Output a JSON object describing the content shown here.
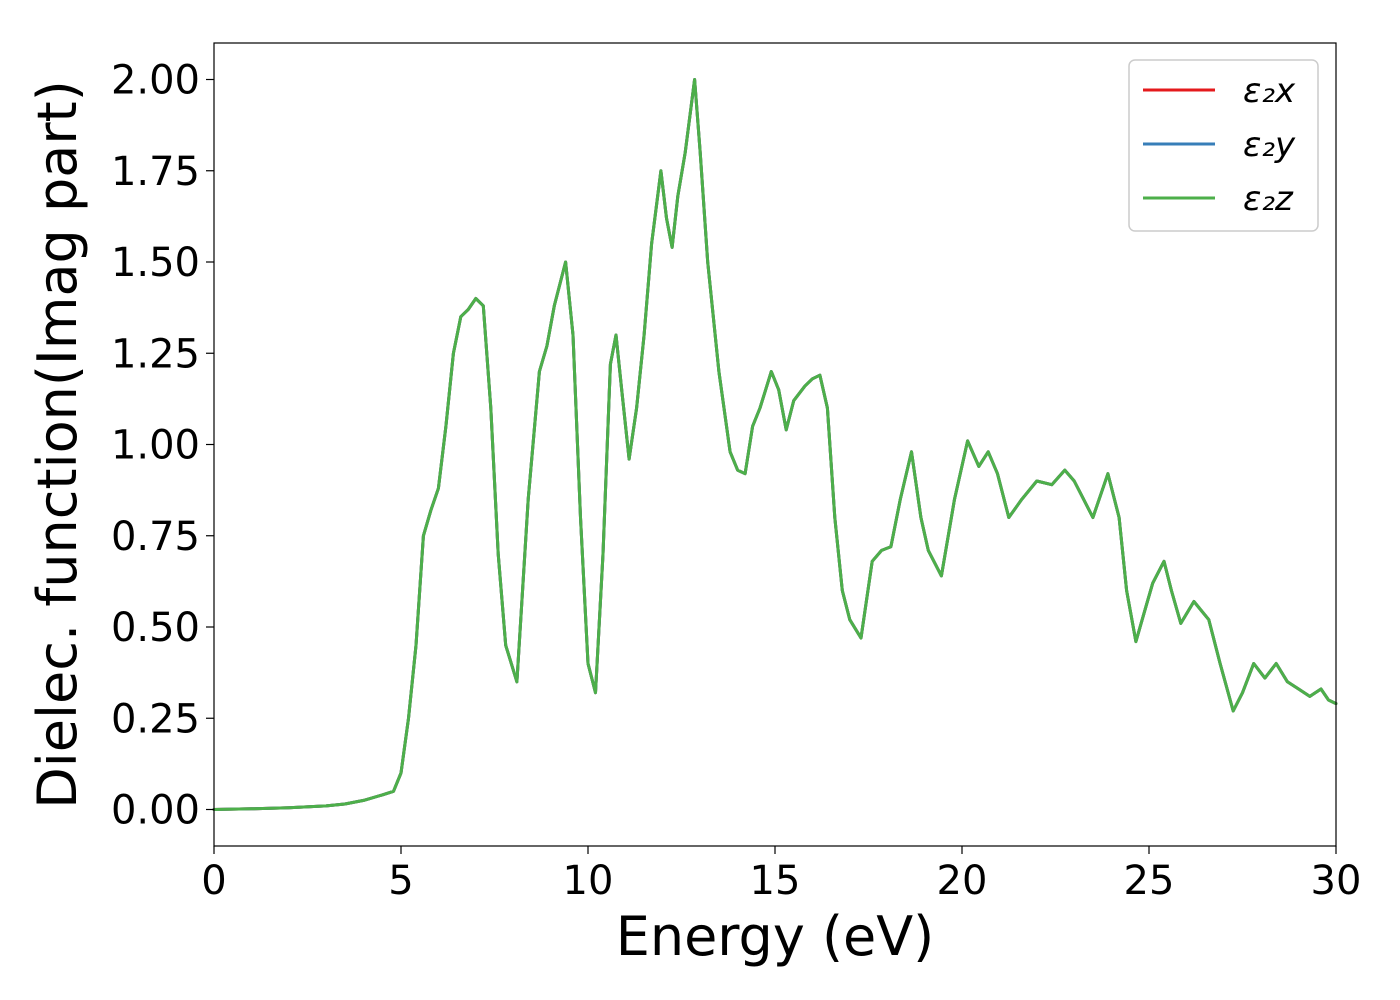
{
  "chart_data": {
    "type": "line",
    "title": "",
    "xlabel": "Energy (eV)",
    "ylabel": "Dielec. function(Imag part)",
    "xlim": [
      0,
      30
    ],
    "ylim": [
      -0.1,
      2.1
    ],
    "xticks": [
      0,
      5,
      10,
      15,
      20,
      25,
      30
    ],
    "xtick_labels": [
      "0",
      "5",
      "10",
      "15",
      "20",
      "25",
      "30"
    ],
    "yticks": [
      0.0,
      0.25,
      0.5,
      0.75,
      1.0,
      1.25,
      1.5,
      1.75,
      2.0
    ],
    "ytick_labels": [
      "0.00",
      "0.25",
      "0.50",
      "0.75",
      "1.00",
      "1.25",
      "1.50",
      "1.75",
      "2.00"
    ],
    "grid": false,
    "legend_position": "top-right",
    "x": [
      0,
      1,
      2,
      3,
      3.5,
      4,
      4.5,
      4.8,
      5.0,
      5.2,
      5.4,
      5.6,
      5.8,
      6.0,
      6.2,
      6.4,
      6.6,
      6.8,
      7.0,
      7.2,
      7.4,
      7.6,
      7.8,
      8.1,
      8.4,
      8.7,
      8.9,
      9.1,
      9.4,
      9.6,
      9.8,
      10.0,
      10.2,
      10.4,
      10.6,
      10.75,
      10.9,
      11.1,
      11.3,
      11.5,
      11.7,
      11.95,
      12.1,
      12.25,
      12.4,
      12.6,
      12.85,
      13.0,
      13.2,
      13.5,
      13.8,
      14.0,
      14.2,
      14.4,
      14.6,
      14.9,
      15.1,
      15.3,
      15.5,
      15.8,
      16.0,
      16.2,
      16.4,
      16.6,
      16.8,
      17.0,
      17.3,
      17.6,
      17.85,
      18.1,
      18.35,
      18.65,
      18.9,
      19.1,
      19.45,
      19.8,
      20.15,
      20.45,
      20.7,
      20.95,
      21.25,
      21.6,
      22.0,
      22.4,
      22.75,
      23.0,
      23.2,
      23.5,
      23.9,
      24.2,
      24.4,
      24.65,
      24.9,
      25.1,
      25.4,
      25.6,
      25.85,
      26.2,
      26.6,
      26.9,
      27.25,
      27.5,
      27.8,
      28.1,
      28.4,
      28.7,
      29.0,
      29.3,
      29.6,
      29.8,
      30.0
    ],
    "series": [
      {
        "name": "ε₂x",
        "color": "#e41a1c",
        "values": [
          0.0,
          0.002,
          0.005,
          0.01,
          0.015,
          0.025,
          0.04,
          0.05,
          0.1,
          0.25,
          0.45,
          0.75,
          0.82,
          0.88,
          1.05,
          1.25,
          1.35,
          1.37,
          1.4,
          1.38,
          1.1,
          0.7,
          0.45,
          0.35,
          0.85,
          1.2,
          1.27,
          1.38,
          1.5,
          1.3,
          0.8,
          0.4,
          0.32,
          0.7,
          1.22,
          1.3,
          1.15,
          0.96,
          1.1,
          1.3,
          1.55,
          1.75,
          1.62,
          1.54,
          1.68,
          1.8,
          2.0,
          1.8,
          1.5,
          1.2,
          0.98,
          0.93,
          0.92,
          1.05,
          1.1,
          1.2,
          1.15,
          1.04,
          1.12,
          1.16,
          1.18,
          1.19,
          1.1,
          0.8,
          0.6,
          0.52,
          0.47,
          0.68,
          0.71,
          0.72,
          0.85,
          0.98,
          0.8,
          0.71,
          0.64,
          0.85,
          1.01,
          0.94,
          0.98,
          0.92,
          0.8,
          0.85,
          0.9,
          0.89,
          0.93,
          0.9,
          0.86,
          0.8,
          0.92,
          0.8,
          0.6,
          0.46,
          0.55,
          0.62,
          0.68,
          0.6,
          0.51,
          0.57,
          0.52,
          0.4,
          0.27,
          0.32,
          0.4,
          0.36,
          0.4,
          0.35,
          0.33,
          0.31,
          0.33,
          0.3,
          0.29
        ]
      },
      {
        "name": "ε₂y",
        "color": "#377eb8",
        "values": [
          0.0,
          0.002,
          0.005,
          0.01,
          0.015,
          0.025,
          0.04,
          0.05,
          0.1,
          0.25,
          0.45,
          0.75,
          0.82,
          0.88,
          1.05,
          1.25,
          1.35,
          1.37,
          1.4,
          1.38,
          1.1,
          0.7,
          0.45,
          0.35,
          0.85,
          1.2,
          1.27,
          1.38,
          1.5,
          1.3,
          0.8,
          0.4,
          0.32,
          0.7,
          1.22,
          1.3,
          1.15,
          0.96,
          1.1,
          1.3,
          1.55,
          1.75,
          1.62,
          1.54,
          1.68,
          1.8,
          2.0,
          1.8,
          1.5,
          1.2,
          0.98,
          0.93,
          0.92,
          1.05,
          1.1,
          1.2,
          1.15,
          1.04,
          1.12,
          1.16,
          1.18,
          1.19,
          1.1,
          0.8,
          0.6,
          0.52,
          0.47,
          0.68,
          0.71,
          0.72,
          0.85,
          0.98,
          0.8,
          0.71,
          0.64,
          0.85,
          1.01,
          0.94,
          0.98,
          0.92,
          0.8,
          0.85,
          0.9,
          0.89,
          0.93,
          0.9,
          0.86,
          0.8,
          0.92,
          0.8,
          0.6,
          0.46,
          0.55,
          0.62,
          0.68,
          0.6,
          0.51,
          0.57,
          0.52,
          0.4,
          0.27,
          0.32,
          0.4,
          0.36,
          0.4,
          0.35,
          0.33,
          0.31,
          0.33,
          0.3,
          0.29
        ]
      },
      {
        "name": "ε₂z",
        "color": "#4daf4a",
        "values": [
          0.0,
          0.002,
          0.005,
          0.01,
          0.015,
          0.025,
          0.04,
          0.05,
          0.1,
          0.25,
          0.45,
          0.75,
          0.82,
          0.88,
          1.05,
          1.25,
          1.35,
          1.37,
          1.4,
          1.38,
          1.1,
          0.7,
          0.45,
          0.35,
          0.85,
          1.2,
          1.27,
          1.38,
          1.5,
          1.3,
          0.8,
          0.4,
          0.32,
          0.7,
          1.22,
          1.3,
          1.15,
          0.96,
          1.1,
          1.3,
          1.55,
          1.75,
          1.62,
          1.54,
          1.68,
          1.8,
          2.0,
          1.8,
          1.5,
          1.2,
          0.98,
          0.93,
          0.92,
          1.05,
          1.1,
          1.2,
          1.15,
          1.04,
          1.12,
          1.16,
          1.18,
          1.19,
          1.1,
          0.8,
          0.6,
          0.52,
          0.47,
          0.68,
          0.71,
          0.72,
          0.85,
          0.98,
          0.8,
          0.71,
          0.64,
          0.85,
          1.01,
          0.94,
          0.98,
          0.92,
          0.8,
          0.85,
          0.9,
          0.89,
          0.93,
          0.9,
          0.86,
          0.8,
          0.92,
          0.8,
          0.6,
          0.46,
          0.55,
          0.62,
          0.68,
          0.6,
          0.51,
          0.57,
          0.52,
          0.4,
          0.27,
          0.32,
          0.4,
          0.36,
          0.4,
          0.35,
          0.33,
          0.31,
          0.33,
          0.3,
          0.29
        ]
      }
    ]
  }
}
